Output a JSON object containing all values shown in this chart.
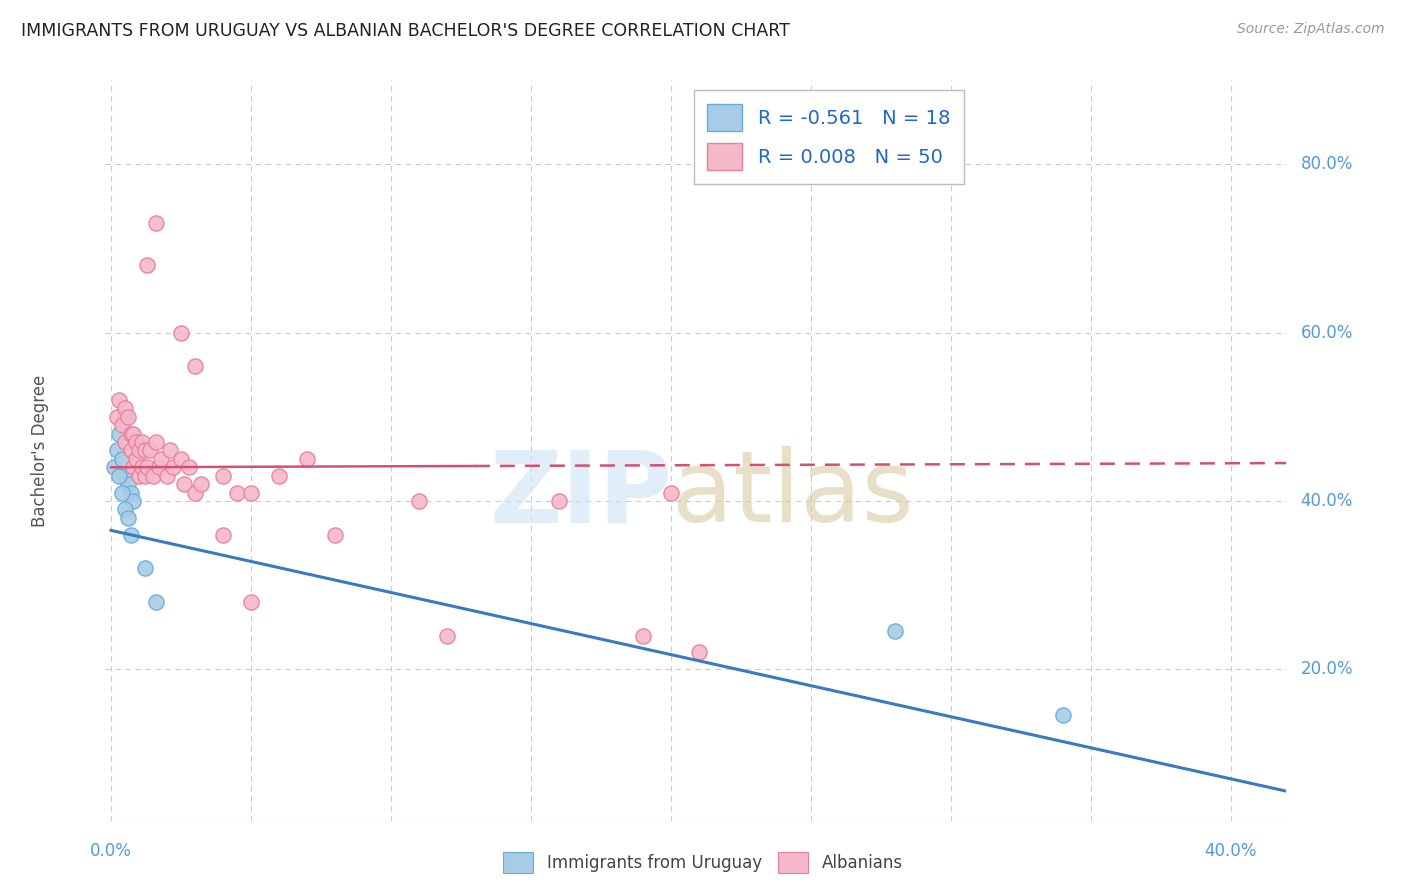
{
  "title": "IMMIGRANTS FROM URUGUAY VS ALBANIAN BACHELOR'S DEGREE CORRELATION CHART",
  "source": "Source: ZipAtlas.com",
  "ylabel": "Bachelor's Degree",
  "y_ticks": [
    0.2,
    0.4,
    0.6,
    0.8
  ],
  "y_tick_labels": [
    "20.0%",
    "40.0%",
    "60.0%",
    "80.0%"
  ],
  "x_lim": [
    -0.002,
    0.42
  ],
  "y_lim": [
    0.02,
    0.9
  ],
  "legend_label1": "R = -0.561   N = 18",
  "legend_label2": "R = 0.008   N = 50",
  "series1_color": "#a8cce8",
  "series1_edge": "#6aaad4",
  "series2_color": "#f4b8c8",
  "series2_edge": "#e88098",
  "trendline1_color": "#3a7abf",
  "trendline2_color": "#d45070",
  "watermark_zip_color": "#cce4f5",
  "watermark_atlas_color": "#d4c89a",
  "background_color": "#ffffff",
  "grid_color": "#cccccc",
  "title_color": "#222222",
  "source_color": "#999999",
  "axis_label_color": "#5599dd",
  "ylabel_color": "#555555",
  "scatter_blue_x": [
    0.001,
    0.002,
    0.003,
    0.004,
    0.005,
    0.006,
    0.007,
    0.008,
    0.003,
    0.004,
    0.005,
    0.006,
    0.007,
    0.012,
    0.016,
    0.28,
    0.34,
    0.005
  ],
  "scatter_blue_y": [
    0.44,
    0.46,
    0.48,
    0.45,
    0.43,
    0.42,
    0.41,
    0.4,
    0.43,
    0.41,
    0.39,
    0.38,
    0.36,
    0.32,
    0.28,
    0.245,
    0.145,
    0.5
  ],
  "scatter_pink_x": [
    0.002,
    0.003,
    0.004,
    0.005,
    0.005,
    0.006,
    0.007,
    0.007,
    0.008,
    0.008,
    0.009,
    0.009,
    0.01,
    0.01,
    0.011,
    0.011,
    0.012,
    0.012,
    0.013,
    0.014,
    0.015,
    0.016,
    0.017,
    0.018,
    0.02,
    0.021,
    0.022,
    0.025,
    0.026,
    0.028,
    0.03,
    0.032,
    0.04,
    0.045,
    0.05,
    0.06,
    0.07,
    0.11,
    0.16,
    0.2,
    0.013,
    0.016,
    0.025,
    0.03,
    0.04,
    0.05,
    0.08,
    0.12,
    0.19,
    0.21
  ],
  "scatter_pink_y": [
    0.5,
    0.52,
    0.49,
    0.51,
    0.47,
    0.5,
    0.48,
    0.46,
    0.48,
    0.44,
    0.47,
    0.45,
    0.46,
    0.43,
    0.47,
    0.44,
    0.46,
    0.43,
    0.44,
    0.46,
    0.43,
    0.47,
    0.44,
    0.45,
    0.43,
    0.46,
    0.44,
    0.45,
    0.42,
    0.44,
    0.41,
    0.42,
    0.43,
    0.41,
    0.41,
    0.43,
    0.45,
    0.4,
    0.4,
    0.41,
    0.68,
    0.73,
    0.6,
    0.56,
    0.36,
    0.28,
    0.36,
    0.24,
    0.24,
    0.22
  ],
  "trendline1_x0": 0.0,
  "trendline1_y0": 0.365,
  "trendline1_x1": 0.42,
  "trendline1_y1": 0.055,
  "trendline2_x0": 0.0,
  "trendline2_y0": 0.44,
  "trendline2_x1": 0.42,
  "trendline2_y1": 0.445,
  "x_tick_positions": [
    0.0,
    0.05,
    0.1,
    0.15,
    0.2,
    0.25,
    0.3,
    0.35,
    0.4
  ]
}
